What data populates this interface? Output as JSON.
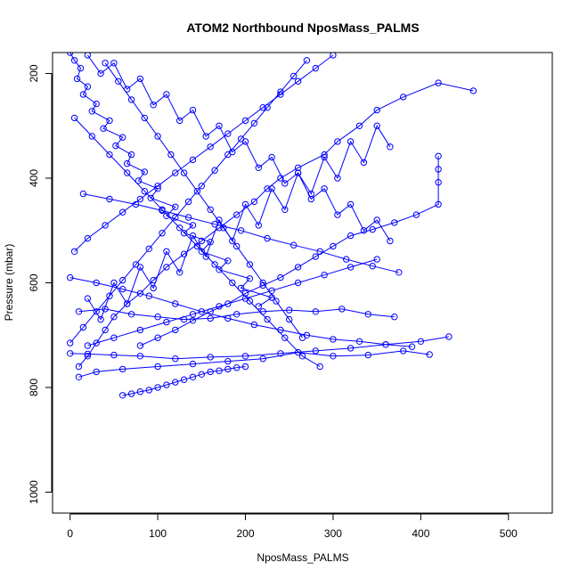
{
  "chart_data": {
    "type": "line",
    "title": "ATOM2 Northbound NposMass_PALMS",
    "xlabel": "NposMass_PALMS",
    "ylabel": "Pressure (mbar)",
    "xlim": [
      -20,
      550
    ],
    "ylim": [
      1040,
      160
    ],
    "y_inverted": true,
    "x_ticks": [
      0,
      100,
      200,
      300,
      400,
      500
    ],
    "y_ticks": [
      200,
      400,
      600,
      800,
      1000
    ],
    "grid": false,
    "legend": "none",
    "series_color": "#0000ff",
    "markers": "open-circle",
    "series": [
      {
        "x": [
          0,
          5,
          12,
          8,
          20,
          15,
          30,
          25,
          45,
          38,
          60,
          52,
          70,
          65,
          85,
          78,
          100,
          92,
          120,
          110,
          140,
          130,
          160,
          150,
          180,
          170,
          205,
          195,
          230,
          215
        ],
        "y": [
          160,
          175,
          190,
          210,
          225,
          240,
          258,
          272,
          290,
          305,
          322,
          338,
          355,
          372,
          388,
          405,
          420,
          438,
          455,
          472,
          490,
          505,
          522,
          540,
          558,
          575,
          592,
          610,
          628,
          645
        ]
      },
      {
        "x": [
          460,
          420,
          380,
          350,
          330,
          305,
          290,
          260,
          240,
          225,
          210,
          190,
          170,
          150,
          130,
          110,
          95,
          80,
          65,
          50,
          40,
          30,
          20,
          10
        ],
        "y": [
          233,
          218,
          245,
          270,
          300,
          330,
          355,
          380,
          400,
          420,
          445,
          470,
          495,
          520,
          545,
          570,
          595,
          620,
          640,
          665,
          690,
          715,
          740,
          760
        ]
      },
      {
        "x": [
          420,
          420,
          420,
          420,
          395,
          370,
          345,
          320,
          300,
          280,
          260,
          240,
          220,
          200,
          180,
          160,
          140,
          120,
          100,
          80
        ],
        "y": [
          358,
          383,
          408,
          450,
          470,
          485,
          498,
          510,
          530,
          550,
          570,
          590,
          605,
          620,
          640,
          655,
          672,
          690,
          705,
          720
        ]
      },
      {
        "x": [
          432,
          400,
          360,
          320,
          280,
          240,
          200,
          160,
          120,
          80,
          50,
          20,
          0
        ],
        "y": [
          703,
          712,
          718,
          725,
          730,
          735,
          740,
          742,
          745,
          740,
          738,
          736,
          735
        ]
      },
      {
        "x": [
          410,
          380,
          340,
          300,
          260,
          220,
          180,
          140,
          100,
          60,
          30,
          10
        ],
        "y": [
          737,
          730,
          738,
          740,
          733,
          745,
          750,
          755,
          760,
          765,
          770,
          780
        ]
      },
      {
        "x": [
          0,
          30,
          60,
          90,
          120,
          150,
          180,
          210,
          240,
          270,
          300,
          330,
          360,
          390
        ],
        "y": [
          590,
          600,
          612,
          625,
          640,
          655,
          668,
          680,
          690,
          700,
          708,
          712,
          718,
          722
        ]
      },
      {
        "x": [
          10,
          40,
          70,
          100,
          130,
          160,
          190,
          220,
          250,
          280,
          310,
          340,
          370
        ],
        "y": [
          655,
          650,
          660,
          665,
          670,
          668,
          660,
          655,
          652,
          655,
          650,
          660,
          665
        ]
      },
      {
        "x": [
          60,
          70,
          80,
          90,
          100,
          110,
          120,
          130,
          140,
          150,
          160,
          170,
          180,
          190,
          200
        ],
        "y": [
          815,
          812,
          808,
          805,
          800,
          795,
          790,
          785,
          780,
          775,
          770,
          768,
          765,
          762,
          760
        ]
      },
      {
        "x": [
          20,
          35,
          50,
          65,
          80,
          95,
          110,
          125,
          140,
          155,
          170,
          185,
          200,
          215,
          230,
          245,
          260,
          275,
          290,
          305,
          320,
          335,
          350,
          365
        ],
        "y": [
          165,
          200,
          180,
          230,
          210,
          260,
          240,
          290,
          270,
          320,
          300,
          350,
          330,
          380,
          360,
          410,
          390,
          440,
          420,
          470,
          450,
          500,
          480,
          520
        ]
      },
      {
        "x": [
          365,
          350,
          335,
          320,
          305,
          290,
          275,
          260,
          245,
          230,
          215,
          200,
          185,
          170,
          155,
          140,
          125,
          110,
          95,
          80,
          65,
          50,
          35,
          20
        ],
        "y": [
          340,
          300,
          370,
          330,
          400,
          360,
          430,
          390,
          460,
          420,
          490,
          450,
          520,
          480,
          550,
          510,
          580,
          540,
          610,
          570,
          640,
          600,
          670,
          630
        ]
      },
      {
        "x": [
          5,
          25,
          45,
          65,
          85,
          105,
          125,
          145,
          165,
          185,
          205,
          225,
          245,
          265,
          285
        ],
        "y": [
          285,
          320,
          355,
          390,
          425,
          460,
          495,
          530,
          565,
          600,
          635,
          670,
          705,
          740,
          760
        ]
      },
      {
        "x": [
          300,
          280,
          260,
          240,
          220,
          200,
          180,
          160,
          140,
          120,
          100,
          80,
          60,
          40,
          20,
          5
        ],
        "y": [
          165,
          190,
          215,
          240,
          265,
          290,
          315,
          340,
          365,
          390,
          415,
          440,
          465,
          490,
          515,
          540
        ]
      },
      {
        "x": [
          350,
          320,
          290,
          260,
          230,
          200,
          170,
          140,
          110,
          80,
          50,
          20
        ],
        "y": [
          555,
          570,
          585,
          600,
          615,
          630,
          645,
          660,
          675,
          690,
          705,
          720
        ]
      },
      {
        "x": [
          15,
          45,
          75,
          105,
          135,
          165,
          195,
          225,
          255,
          285,
          315,
          345,
          375
        ],
        "y": [
          430,
          440,
          450,
          462,
          475,
          488,
          500,
          515,
          528,
          540,
          555,
          568,
          580
        ]
      },
      {
        "x": [
          40,
          55,
          70,
          85,
          100,
          115,
          130,
          145,
          160,
          175,
          190,
          205,
          220,
          235,
          250,
          265
        ],
        "y": [
          180,
          215,
          250,
          285,
          320,
          355,
          390,
          425,
          460,
          495,
          530,
          565,
          600,
          635,
          670,
          705
        ]
      },
      {
        "x": [
          270,
          255,
          240,
          225,
          210,
          195,
          180,
          165,
          150,
          135,
          120,
          105,
          90,
          75,
          60,
          45,
          30,
          15,
          0
        ],
        "y": [
          175,
          205,
          235,
          265,
          295,
          325,
          355,
          385,
          415,
          445,
          475,
          505,
          535,
          565,
          595,
          625,
          655,
          685,
          715
        ]
      }
    ]
  }
}
